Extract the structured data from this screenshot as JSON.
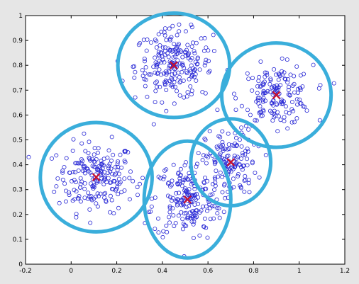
{
  "chart_data": {
    "type": "scatter",
    "title": "",
    "xlabel": "",
    "ylabel": "",
    "xlim": [
      -0.2,
      1.2
    ],
    "ylim": [
      0,
      1
    ],
    "grid": false,
    "x_ticks": [
      -0.2,
      0,
      0.2,
      0.4,
      0.6,
      0.8,
      1,
      1.2
    ],
    "y_ticks": [
      0,
      0.1,
      0.2,
      0.3,
      0.4,
      0.5,
      0.6,
      0.7,
      0.8,
      0.9,
      1
    ],
    "x_tick_labels": [
      "-0.2",
      "0",
      "0.2",
      "0.4",
      "0.6",
      "0.8",
      "1",
      "1.2"
    ],
    "y_tick_labels": [
      "0",
      "0.1",
      "0.2",
      "0.3",
      "0.4",
      "0.5",
      "0.6",
      "0.7",
      "0.8",
      "0.9",
      "1"
    ],
    "marker": "open-circle",
    "point_color": "#2b2bd6",
    "centroid_color": "#c8102e",
    "cluster_outline_color": "#3aaedb",
    "clusters": [
      {
        "centroid": [
          0.11,
          0.35
        ],
        "points_approx": 200,
        "spread": [
          0.085,
          0.07
        ],
        "outline_radius": [
          0.245,
          0.22
        ]
      },
      {
        "centroid": [
          0.45,
          0.8
        ],
        "points_approx": 220,
        "spread": [
          0.085,
          0.07
        ],
        "outline_radius": [
          0.245,
          0.21
        ]
      },
      {
        "centroid": [
          0.9,
          0.68
        ],
        "points_approx": 160,
        "spread": [
          0.08,
          0.06
        ],
        "outline_radius": [
          0.24,
          0.21
        ]
      },
      {
        "centroid": [
          0.51,
          0.26
        ],
        "points_approx": 200,
        "spread": [
          0.075,
          0.08
        ],
        "outline_radius": [
          0.19,
          0.235
        ]
      },
      {
        "centroid": [
          0.7,
          0.41
        ],
        "points_approx": 130,
        "spread": [
          0.055,
          0.065
        ],
        "outline_radius": [
          0.175,
          0.175
        ]
      }
    ]
  }
}
